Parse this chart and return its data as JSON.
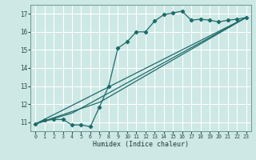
{
  "xlabel": "Humidex (Indice chaleur)",
  "bg_color": "#cde8e5",
  "grid_color": "#ffffff",
  "line_color": "#1e6b6b",
  "xlim": [
    -0.5,
    23.5
  ],
  "ylim": [
    10.5,
    17.5
  ],
  "yticks": [
    11,
    12,
    13,
    14,
    15,
    16,
    17
  ],
  "xticks": [
    0,
    1,
    2,
    3,
    4,
    5,
    6,
    7,
    8,
    9,
    10,
    11,
    12,
    13,
    14,
    15,
    16,
    17,
    18,
    19,
    20,
    21,
    22,
    23
  ],
  "line1_x": [
    0,
    1,
    2,
    3,
    4,
    5,
    6,
    7,
    8,
    9,
    10,
    11,
    12,
    13,
    14,
    15,
    16,
    17,
    18,
    19,
    20,
    21,
    22,
    23
  ],
  "line1_y": [
    10.9,
    11.1,
    11.15,
    11.15,
    10.85,
    10.85,
    10.75,
    11.85,
    13.0,
    15.1,
    15.45,
    16.0,
    16.0,
    16.6,
    16.95,
    17.05,
    17.15,
    16.65,
    16.7,
    16.65,
    16.55,
    16.65,
    16.7,
    16.8
  ],
  "line2_x": [
    0,
    23
  ],
  "line2_y": [
    10.9,
    16.8
  ],
  "line3_x": [
    0,
    4,
    23
  ],
  "line3_y": [
    10.9,
    11.5,
    16.8
  ],
  "line4_x": [
    0,
    7,
    23
  ],
  "line4_y": [
    10.9,
    12.1,
    16.8
  ]
}
